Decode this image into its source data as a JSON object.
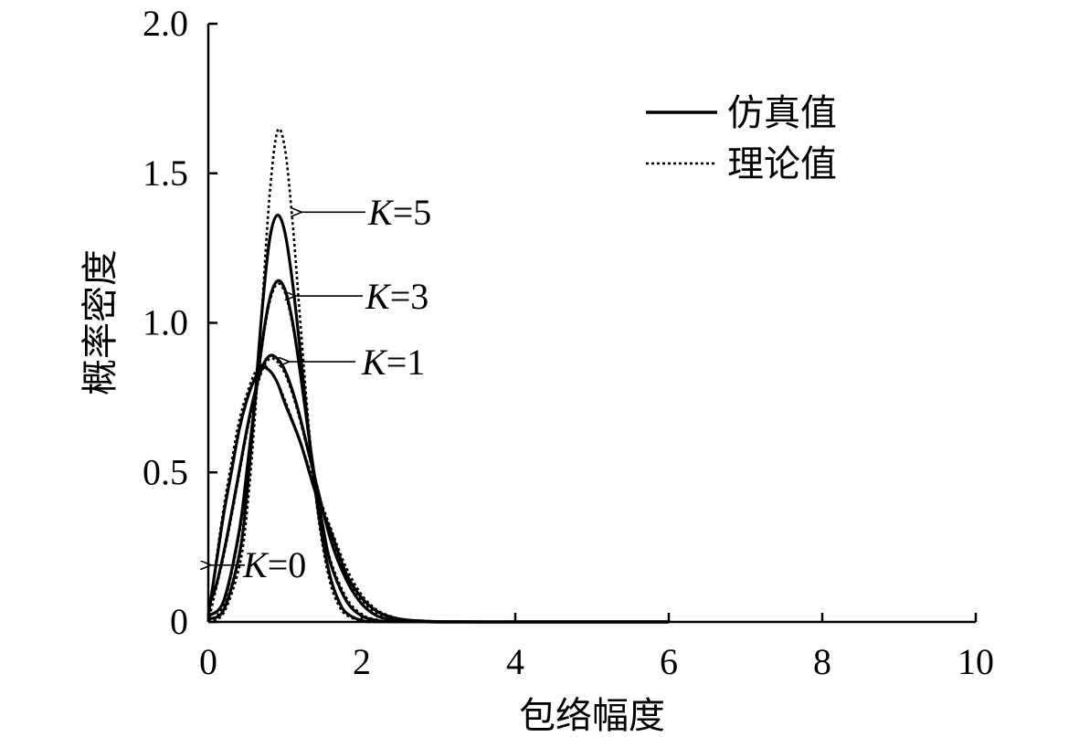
{
  "chart_data": {
    "type": "line",
    "xlabel": "包络幅度",
    "ylabel": "概率密度",
    "xlim": [
      0,
      10
    ],
    "ylim": [
      0,
      2.0
    ],
    "xticks": [
      0,
      2,
      4,
      6,
      8,
      10
    ],
    "yticks": [
      0,
      0.5,
      1.0,
      1.5,
      2.0
    ],
    "xtick_labels": [
      "0",
      "2",
      "4",
      "6",
      "8",
      "10"
    ],
    "ytick_labels": [
      "0",
      "0.5",
      "1.0",
      "1.5",
      "2.0"
    ],
    "grid": false,
    "legend": {
      "placement": "top-right",
      "entries": [
        {
          "label": "仿真值",
          "style": "solid"
        },
        {
          "label": "理论值",
          "style": "dotted"
        }
      ]
    },
    "series": [
      {
        "K": 0,
        "kind": "simulated",
        "style": "solid",
        "x": [
          0,
          0.1,
          0.2,
          0.3,
          0.4,
          0.5,
          0.6,
          0.7,
          0.8,
          0.9,
          1.0,
          1.2,
          1.4,
          1.6,
          1.8,
          2.0,
          2.2,
          2.4,
          2.6,
          2.8,
          3.0,
          3.5,
          4.0,
          5.0,
          6.0
        ],
        "y": [
          0.02,
          0.19,
          0.36,
          0.5,
          0.64,
          0.74,
          0.81,
          0.85,
          0.84,
          0.8,
          0.73,
          0.6,
          0.43,
          0.3,
          0.16,
          0.08,
          0.035,
          0.015,
          0.006,
          0.003,
          0.001,
          0,
          0,
          0,
          0
        ]
      },
      {
        "K": 0,
        "kind": "theoretical",
        "style": "dotted",
        "x": [
          0,
          0.1,
          0.2,
          0.3,
          0.4,
          0.5,
          0.6,
          0.7,
          0.8,
          0.9,
          1.0,
          1.2,
          1.4,
          1.6,
          1.8,
          2.0,
          2.2,
          2.4,
          2.6,
          2.8,
          3.0,
          3.5,
          4.0,
          5.0,
          6.0
        ],
        "y": [
          0.0,
          0.2,
          0.38,
          0.53,
          0.67,
          0.76,
          0.83,
          0.86,
          0.84,
          0.8,
          0.74,
          0.6,
          0.45,
          0.31,
          0.18,
          0.09,
          0.04,
          0.017,
          0.006,
          0.002,
          0.001,
          0,
          0,
          0,
          0
        ]
      },
      {
        "K": 1,
        "kind": "simulated",
        "style": "solid",
        "x": [
          0,
          0.1,
          0.2,
          0.3,
          0.4,
          0.5,
          0.6,
          0.7,
          0.8,
          0.9,
          1.0,
          1.1,
          1.2,
          1.4,
          1.6,
          1.8,
          2.0,
          2.2,
          2.4,
          2.6,
          3.0,
          4.0,
          5.0,
          6.0
        ],
        "y": [
          0.05,
          0.12,
          0.23,
          0.36,
          0.5,
          0.64,
          0.76,
          0.85,
          0.89,
          0.88,
          0.84,
          0.77,
          0.68,
          0.47,
          0.27,
          0.14,
          0.06,
          0.02,
          0.007,
          0.002,
          0,
          0,
          0,
          0
        ]
      },
      {
        "K": 1,
        "kind": "theoretical",
        "style": "dotted",
        "x": [
          0,
          0.1,
          0.2,
          0.3,
          0.4,
          0.5,
          0.6,
          0.7,
          0.8,
          0.9,
          1.0,
          1.1,
          1.2,
          1.4,
          1.6,
          1.8,
          2.0,
          2.2,
          2.4,
          2.6,
          3.0,
          4.0,
          5.0,
          6.0
        ],
        "y": [
          0.0,
          0.11,
          0.22,
          0.35,
          0.49,
          0.63,
          0.75,
          0.84,
          0.88,
          0.87,
          0.83,
          0.76,
          0.67,
          0.47,
          0.28,
          0.15,
          0.07,
          0.03,
          0.01,
          0.003,
          0,
          0,
          0,
          0
        ]
      },
      {
        "K": 3,
        "kind": "simulated",
        "style": "solid",
        "x": [
          0,
          0.2,
          0.4,
          0.5,
          0.6,
          0.7,
          0.8,
          0.9,
          1.0,
          1.1,
          1.2,
          1.3,
          1.4,
          1.5,
          1.6,
          1.8,
          2.0,
          2.2,
          2.4,
          3.0,
          4.0,
          5.0,
          6.0
        ],
        "y": [
          0.02,
          0.07,
          0.3,
          0.5,
          0.72,
          0.93,
          1.08,
          1.14,
          1.11,
          1.0,
          0.83,
          0.64,
          0.46,
          0.31,
          0.19,
          0.07,
          0.02,
          0.005,
          0.001,
          0,
          0,
          0,
          0
        ]
      },
      {
        "K": 3,
        "kind": "theoretical",
        "style": "dotted",
        "x": [
          0,
          0.2,
          0.4,
          0.5,
          0.6,
          0.7,
          0.8,
          0.9,
          1.0,
          1.1,
          1.2,
          1.3,
          1.4,
          1.5,
          1.6,
          1.8,
          2.0,
          2.2,
          2.4,
          3.0,
          4.0,
          5.0,
          6.0
        ],
        "y": [
          0.0,
          0.06,
          0.29,
          0.49,
          0.71,
          0.92,
          1.07,
          1.13,
          1.1,
          0.99,
          0.83,
          0.64,
          0.46,
          0.31,
          0.2,
          0.08,
          0.025,
          0.007,
          0.002,
          0,
          0,
          0,
          0
        ]
      },
      {
        "K": 5,
        "kind": "simulated",
        "style": "solid",
        "x": [
          0,
          0.2,
          0.4,
          0.5,
          0.6,
          0.7,
          0.8,
          0.9,
          1.0,
          1.1,
          1.2,
          1.3,
          1.4,
          1.5,
          1.6,
          1.7,
          1.8,
          2.0,
          2.2,
          3.0,
          4.0,
          5.0,
          6.0
        ],
        "y": [
          0.01,
          0.04,
          0.22,
          0.42,
          0.72,
          1.04,
          1.28,
          1.36,
          1.3,
          1.13,
          0.9,
          0.65,
          0.43,
          0.26,
          0.14,
          0.07,
          0.03,
          0.005,
          0.001,
          0,
          0,
          0,
          0
        ]
      },
      {
        "K": 5,
        "kind": "theoretical",
        "style": "dotted",
        "x": [
          0,
          0.2,
          0.4,
          0.5,
          0.6,
          0.7,
          0.8,
          0.9,
          1.0,
          1.1,
          1.2,
          1.3,
          1.4,
          1.5,
          1.6,
          1.7,
          1.8,
          2.0,
          2.2,
          3.0,
          4.0,
          5.0,
          6.0
        ],
        "y": [
          0.0,
          0.03,
          0.18,
          0.36,
          0.66,
          1.05,
          1.43,
          1.64,
          1.58,
          1.33,
          1.0,
          0.68,
          0.42,
          0.24,
          0.12,
          0.055,
          0.023,
          0.003,
          0,
          0,
          0,
          0,
          0
        ]
      }
    ],
    "annotations": [
      {
        "label_italic": "K",
        "label_rest": "=5",
        "target_x": 1.18,
        "target_y": 1.37
      },
      {
        "label_italic": "K",
        "label_rest": "=3",
        "target_x": 1.1,
        "target_y": 1.09
      },
      {
        "label_italic": "K",
        "label_rest": "=1",
        "target_x": 1.02,
        "target_y": 0.87
      },
      {
        "label_italic": "K",
        "label_rest": "=0",
        "target_x": 0.0,
        "target_y": 0.19
      }
    ]
  }
}
